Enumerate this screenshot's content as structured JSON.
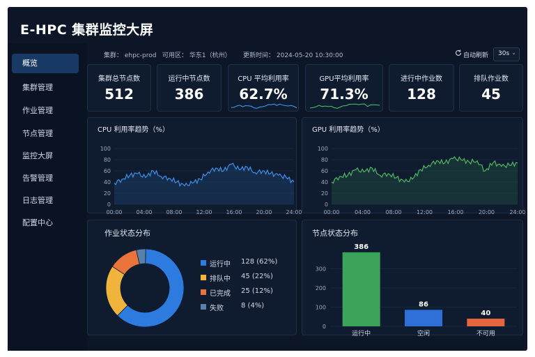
{
  "app": {
    "title": "E-HPC 集群监控大屏"
  },
  "sidebar": {
    "items": [
      {
        "label": "概览",
        "active": true
      },
      {
        "label": "集群管理"
      },
      {
        "label": "作业管理"
      },
      {
        "label": "节点管理"
      },
      {
        "label": "监控大屏"
      },
      {
        "label": "告警管理"
      },
      {
        "label": "日志管理"
      },
      {
        "label": "配置中心"
      }
    ]
  },
  "topbar": {
    "cluster": "集群： ehpc-prod",
    "zone": "可用区： 华东1（杭州）",
    "updated": "更新时间： 2024-05-20 10:30:00",
    "auto_refresh_label": "自动刷新",
    "refresh_interval": "30s"
  },
  "stats": [
    {
      "label": "集群总节点数",
      "value": "512"
    },
    {
      "label": "运行中节点数",
      "value": "386"
    },
    {
      "label": "CPU 平均利用率",
      "value": "62.7%",
      "spark_color": "#3fa0ff"
    },
    {
      "label": "GPU平均利用率",
      "value": "71.3%",
      "spark_color": "#4cc36a"
    },
    {
      "label": "进行中作业数",
      "value": "128"
    },
    {
      "label": "排队作业数",
      "value": "45"
    }
  ],
  "colors": {
    "cpu": "#3d8fe8",
    "gpu": "#4cb860",
    "running": "#2e7be0",
    "queued": "#f0b43c",
    "done": "#e8743c",
    "failed": "#5a7fa8"
  },
  "chart_data": [
    {
      "type": "line",
      "title": "CPU 利用率趋势（%）",
      "x_ticks": [
        "00:00",
        "04:00",
        "08:00",
        "12:00",
        "16:00",
        "20:00",
        "24:00"
      ],
      "y_ticks": [
        "0",
        "20",
        "40",
        "60",
        "80",
        "100"
      ],
      "ylim": [
        0,
        100
      ],
      "series": [
        {
          "values": [
            38,
            45,
            52,
            55,
            48,
            60,
            50,
            47,
            40,
            33,
            38,
            45,
            58,
            65,
            60,
            72,
            62,
            67,
            57,
            60,
            55,
            52,
            48,
            40
          ]
        }
      ]
    },
    {
      "type": "line",
      "title": "GPU 利用率趋势（%）",
      "x_ticks": [
        "00:00",
        "04:00",
        "08:00",
        "12:00",
        "16:00",
        "20:00",
        "24:00"
      ],
      "y_ticks": [
        "0",
        "20",
        "40",
        "60",
        "80",
        "100"
      ],
      "ylim": [
        0,
        100
      ],
      "series": [
        {
          "values": [
            40,
            50,
            52,
            62,
            58,
            65,
            52,
            55,
            48,
            40,
            45,
            62,
            70,
            78,
            74,
            82,
            80,
            76,
            78,
            60,
            75,
            68,
            70,
            74
          ]
        }
      ]
    },
    {
      "type": "pie",
      "title": "作业状态分布",
      "slices": [
        {
          "label": "运行中",
          "value": 128,
          "text": "128 (62%)"
        },
        {
          "label": "排队中",
          "value": 45,
          "text": "45 (22%)"
        },
        {
          "label": "已完成",
          "value": 25,
          "text": "25 (12%)"
        },
        {
          "label": "失败",
          "value": 8,
          "text": "8 (4%)"
        }
      ]
    },
    {
      "type": "bar",
      "title": "节点状态分布",
      "categories": [
        "运行中",
        "空闲",
        "不可用"
      ],
      "values": [
        386,
        86,
        40
      ],
      "bar_colors": [
        "#3ca35a",
        "#2e6fd8",
        "#e4653c"
      ],
      "y_ticks": [
        "0",
        "100",
        "200",
        "300"
      ],
      "ylim": [
        0,
        400
      ]
    }
  ]
}
